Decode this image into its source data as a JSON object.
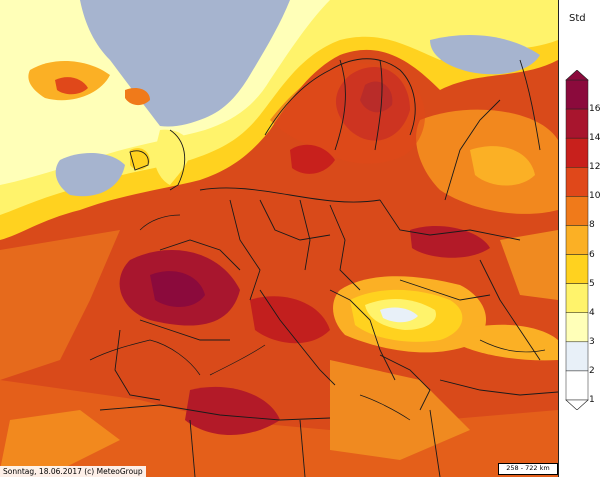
{
  "legend": {
    "unit": "Std",
    "ticks": [
      "16",
      "14",
      "12",
      "10",
      "8",
      "6",
      "5",
      "4",
      "3",
      "2",
      "1"
    ],
    "colors": [
      "#8b0a3c",
      "#a8152e",
      "#c8201c",
      "#e0481a",
      "#f07a1a",
      "#fbb025",
      "#ffd21f",
      "#fff36b",
      "#ffffb8",
      "#e8f0f8",
      "#ffffff"
    ]
  },
  "footer": {
    "caption": "Sonntag, 18.06.2017 (c) MeteoGroup",
    "scale": "258 - 722 km"
  },
  "colors": {
    "sea": "#a6b4cf",
    "border": "#1a1a1a"
  }
}
